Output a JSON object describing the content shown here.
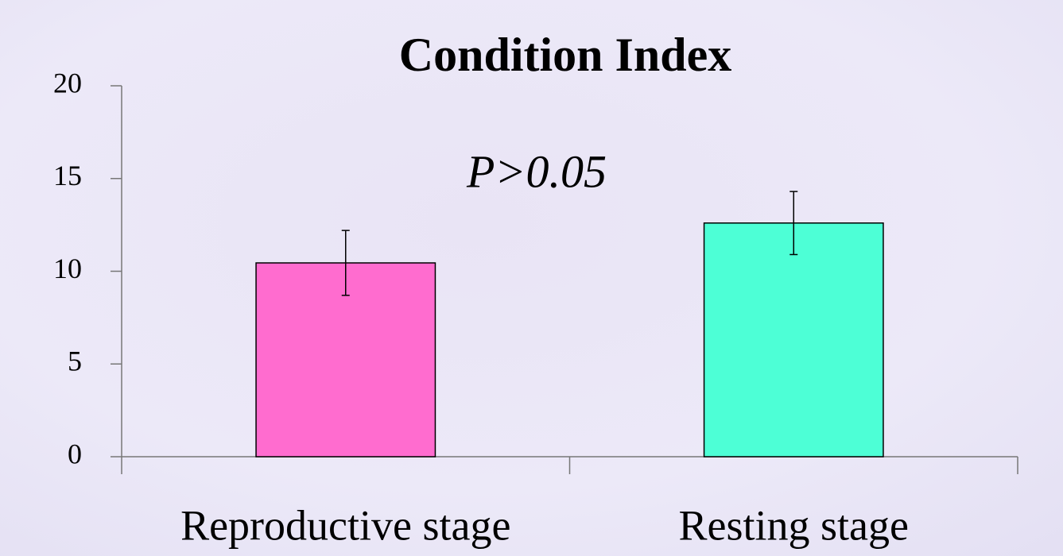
{
  "chart_data": {
    "type": "bar",
    "title": "Condition Index",
    "annotation": "P>0.05",
    "categories": [
      "Reproductive stage",
      "Resting stage"
    ],
    "values": [
      10.45,
      12.6
    ],
    "errors": [
      1.75,
      1.7
    ],
    "colors": [
      "#ff6ccf",
      "#4dffd6"
    ],
    "ylim": [
      0,
      20
    ],
    "yticks": [
      0,
      5,
      10,
      15,
      20
    ],
    "grid": false
  }
}
